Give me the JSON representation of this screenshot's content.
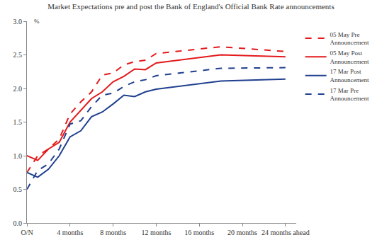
{
  "chart_data": {
    "type": "line",
    "title": "Market Expectations pre and post the Bank of England's Official Bank Rate announcements",
    "y_label": "%",
    "x": [
      0,
      1,
      2,
      3,
      4,
      5,
      6,
      7,
      8,
      9,
      10,
      11,
      12,
      18,
      24
    ],
    "series": [
      {
        "name": "05 May Pre Announcement",
        "color": "#e3191c",
        "line_style": "dashed",
        "values": [
          0.75,
          1.0,
          1.1,
          1.25,
          1.62,
          1.8,
          1.95,
          2.2,
          2.23,
          2.35,
          2.4,
          2.42,
          2.52,
          2.62,
          2.55
        ]
      },
      {
        "name": "05 May Post Announcement",
        "color": "#e3191c",
        "line_style": "solid",
        "values": [
          1.0,
          0.93,
          1.1,
          1.2,
          1.5,
          1.68,
          1.85,
          1.95,
          2.1,
          2.18,
          2.29,
          2.28,
          2.38,
          2.5,
          2.47
        ]
      },
      {
        "name": "17 Mar Post Announcement",
        "color": "#203f8f",
        "line_style": "solid",
        "values": [
          0.75,
          0.68,
          0.8,
          1.0,
          1.28,
          1.37,
          1.58,
          1.65,
          1.77,
          1.9,
          1.88,
          1.95,
          1.99,
          2.11,
          2.14
        ]
      },
      {
        "name": "17 Mar Pre Announcement",
        "color": "#203f8f",
        "line_style": "dashed",
        "values": [
          0.5,
          0.78,
          0.88,
          1.1,
          1.47,
          1.52,
          1.73,
          1.9,
          1.93,
          2.03,
          2.1,
          2.13,
          2.19,
          2.3,
          2.31
        ]
      }
    ],
    "xlim": [
      0,
      25
    ],
    "xticks": [
      {
        "value": 0,
        "label": "O/N"
      },
      {
        "value": 4,
        "label": "4 months"
      },
      {
        "value": 8,
        "label": "8 months"
      },
      {
        "value": 12,
        "label": "12 months"
      },
      {
        "value": 16,
        "label": "16 months"
      },
      {
        "value": 20,
        "label": "20 months"
      },
      {
        "value": 24,
        "label": "24 months ahead"
      }
    ],
    "ylim": [
      0,
      3
    ],
    "yticks": [
      {
        "value": 0,
        "label": "0.0"
      },
      {
        "value": 0.5,
        "label": "0.5"
      },
      {
        "value": 1,
        "label": "1.0"
      },
      {
        "value": 1.5,
        "label": "1.5"
      },
      {
        "value": 2,
        "label": "2.0"
      },
      {
        "value": 2.5,
        "label": "2.5"
      },
      {
        "value": 3,
        "label": "3.0"
      }
    ],
    "grid": false,
    "legend": "right"
  }
}
